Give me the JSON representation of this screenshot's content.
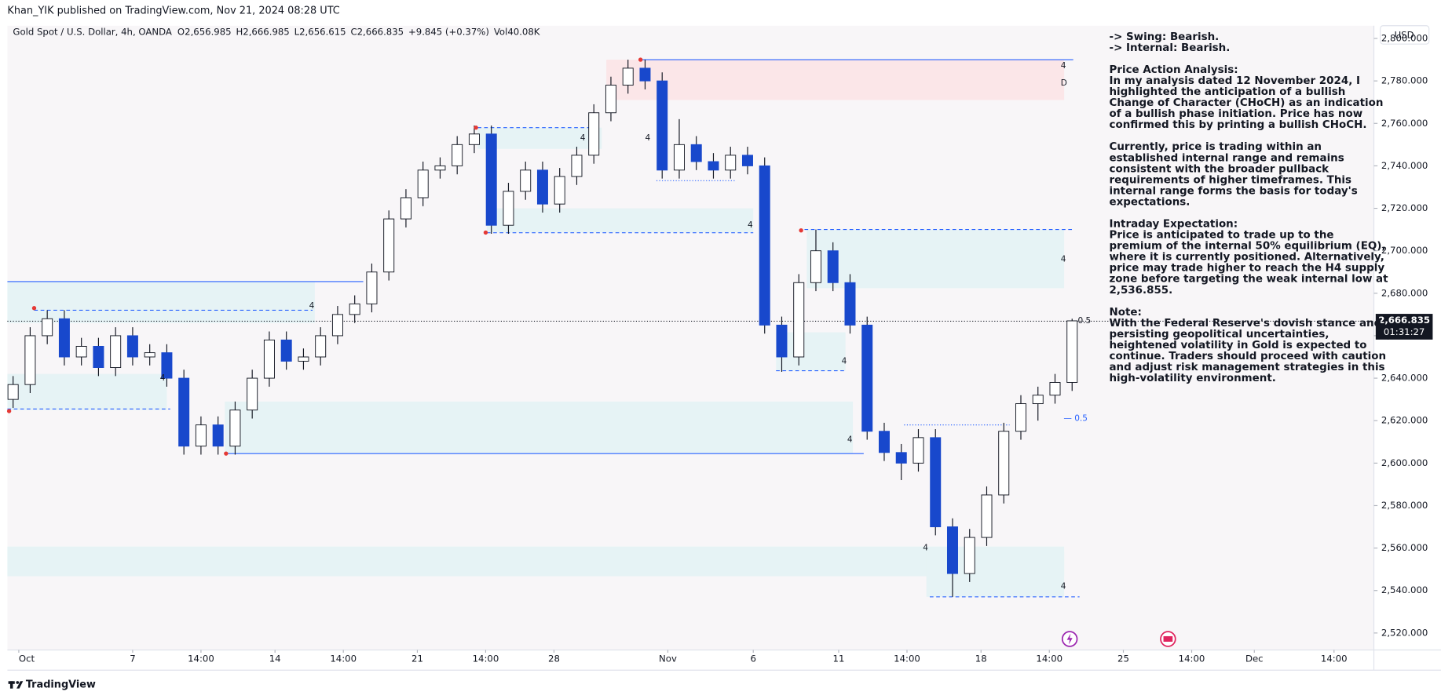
{
  "chart_data": {
    "type": "candlestick",
    "published": "Khan_YIK published on TradingView.com, Nov 21, 2024 08:28 UTC",
    "symbol": "Gold Spot / U.S. Dollar, 4h, OANDA",
    "ohlc_legend": [
      "O2,656.985",
      "H2,666.985",
      "L2,656.615",
      "C2,666.835",
      "+9.845 (+0.37%)",
      "Vol40.08K"
    ],
    "currency": "USD",
    "brand": "TradingView",
    "xlim": [
      0,
      240
    ],
    "ylim": [
      2512,
      2806
    ],
    "yticks": [
      {
        "value": 2520,
        "label": "2,520.000"
      },
      {
        "value": 2540,
        "label": "2,540.000"
      },
      {
        "value": 2560,
        "label": "2,560.000"
      },
      {
        "value": 2580,
        "label": "2,580.000"
      },
      {
        "value": 2600,
        "label": "2,600.000"
      },
      {
        "value": 2620,
        "label": "2,620.000"
      },
      {
        "value": 2640,
        "label": "2,640.000"
      },
      {
        "value": 2660,
        "label": "2,660.000"
      },
      {
        "value": 2680,
        "label": "2,680.000"
      },
      {
        "value": 2700,
        "label": "2,700.000"
      },
      {
        "value": 2720,
        "label": "2,720.000"
      },
      {
        "value": 2740,
        "label": "2,740.000"
      },
      {
        "value": 2760,
        "label": "2,760.000"
      },
      {
        "value": 2780,
        "label": "2,780.000"
      },
      {
        "value": 2800,
        "label": "2,800.000"
      }
    ],
    "xticks": [
      {
        "value": 2,
        "label": "Oct"
      },
      {
        "value": 22,
        "label": "7"
      },
      {
        "value": 34,
        "label": "14:00"
      },
      {
        "value": 47,
        "label": "14"
      },
      {
        "value": 59,
        "label": "14:00"
      },
      {
        "value": 72,
        "label": "21"
      },
      {
        "value": 84,
        "label": "14:00"
      },
      {
        "value": 96,
        "label": "28"
      },
      {
        "value": 116,
        "label": "Nov"
      },
      {
        "value": 131,
        "label": "6"
      },
      {
        "value": 146,
        "label": "11"
      },
      {
        "value": 158,
        "label": "14:00"
      },
      {
        "value": 171,
        "label": "18"
      },
      {
        "value": 183,
        "label": "14:00"
      },
      {
        "value": 196,
        "label": "25"
      },
      {
        "value": 208,
        "label": "14:00"
      },
      {
        "value": 219,
        "label": "Dec"
      },
      {
        "value": 233,
        "label": "14:00"
      }
    ],
    "bull_color": "#ffffff",
    "bear_color": "#1848cc",
    "x": [
      1,
      4,
      7,
      10,
      13,
      16,
      19,
      22,
      25,
      28,
      31,
      34,
      37,
      40,
      43,
      46,
      49,
      52,
      55,
      58,
      61,
      64,
      67,
      70,
      73,
      76,
      79,
      82,
      85,
      88,
      91,
      94,
      97,
      100,
      103,
      106,
      109,
      112,
      115,
      118,
      121,
      124,
      127,
      130,
      133,
      136,
      139,
      142,
      145,
      148,
      151,
      154,
      157,
      160,
      163,
      166,
      169,
      172,
      175,
      178,
      181,
      184,
      187
    ],
    "candles": [
      [
        2630,
        2641,
        2626,
        2637
      ],
      [
        2637,
        2664,
        2633,
        2660
      ],
      [
        2660,
        2672,
        2656,
        2668
      ],
      [
        2668,
        2672,
        2646,
        2650
      ],
      [
        2650,
        2659,
        2646,
        2655
      ],
      [
        2655,
        2659,
        2641,
        2645
      ],
      [
        2645,
        2664,
        2641,
        2660
      ],
      [
        2660,
        2664,
        2646,
        2650
      ],
      [
        2650,
        2656,
        2646,
        2652
      ],
      [
        2652,
        2656,
        2636,
        2640
      ],
      [
        2640,
        2644,
        2604,
        2608
      ],
      [
        2608,
        2622,
        2604,
        2618
      ],
      [
        2618,
        2622,
        2604,
        2608
      ],
      [
        2608,
        2629,
        2604,
        2625
      ],
      [
        2625,
        2644,
        2621,
        2640
      ],
      [
        2640,
        2662,
        2636,
        2658
      ],
      [
        2658,
        2662,
        2644,
        2648
      ],
      [
        2648,
        2654,
        2644,
        2650
      ],
      [
        2650,
        2664,
        2646,
        2660
      ],
      [
        2660,
        2674,
        2656,
        2670
      ],
      [
        2670,
        2679,
        2666,
        2675
      ],
      [
        2675,
        2694,
        2671,
        2690
      ],
      [
        2690,
        2719,
        2686,
        2715
      ],
      [
        2715,
        2729,
        2711,
        2725
      ],
      [
        2725,
        2742,
        2721,
        2738
      ],
      [
        2738,
        2744,
        2734,
        2740
      ],
      [
        2740,
        2754,
        2736,
        2750
      ],
      [
        2750,
        2759,
        2746,
        2755
      ],
      [
        2755,
        2759,
        2708,
        2712
      ],
      [
        2712,
        2732,
        2708,
        2728
      ],
      [
        2728,
        2742,
        2724,
        2738
      ],
      [
        2738,
        2742,
        2718,
        2722
      ],
      [
        2722,
        2739,
        2718,
        2735
      ],
      [
        2735,
        2749,
        2731,
        2745
      ],
      [
        2745,
        2769,
        2741,
        2765
      ],
      [
        2765,
        2782,
        2761,
        2778
      ],
      [
        2778,
        2790,
        2774,
        2786
      ],
      [
        2786,
        2790,
        2776,
        2780
      ],
      [
        2780,
        2784,
        2734,
        2738
      ],
      [
        2738,
        2762,
        2734,
        2750
      ],
      [
        2750,
        2754,
        2738,
        2742
      ],
      [
        2742,
        2746,
        2734,
        2738
      ],
      [
        2738,
        2749,
        2734,
        2745
      ],
      [
        2745,
        2749,
        2736,
        2740
      ],
      [
        2740,
        2744,
        2661,
        2665
      ],
      [
        2665,
        2669,
        2643,
        2650
      ],
      [
        2650,
        2689,
        2646,
        2685
      ],
      [
        2685,
        2710,
        2681,
        2700
      ],
      [
        2700,
        2704,
        2681,
        2685
      ],
      [
        2685,
        2689,
        2661,
        2665
      ],
      [
        2665,
        2669,
        2611,
        2615
      ],
      [
        2615,
        2619,
        2601,
        2605
      ],
      [
        2605,
        2609,
        2592,
        2600
      ],
      [
        2600,
        2616,
        2596,
        2612
      ],
      [
        2612,
        2616,
        2566,
        2570
      ],
      [
        2570,
        2574,
        2537,
        2548
      ],
      [
        2548,
        2569,
        2544,
        2565
      ],
      [
        2565,
        2589,
        2561,
        2585
      ],
      [
        2585,
        2619,
        2581,
        2615
      ],
      [
        2615,
        2632,
        2611,
        2628
      ],
      [
        2628,
        2636,
        2620,
        2632
      ],
      [
        2632,
        2642,
        2628,
        2638
      ],
      [
        2638,
        2668,
        2634,
        2667
      ]
    ],
    "zones": [
      {
        "x": [
          105.2,
          185.6
        ],
        "y": [
          2771,
          2790
        ],
        "color": "#fbe6e8"
      },
      {
        "x": [
          0,
          54
        ],
        "y": [
          2666,
          2685.5
        ],
        "color": "#e6f3f5"
      },
      {
        "x": [
          0,
          28
        ],
        "y": [
          2625,
          2642
        ],
        "color": "#e6f3f5"
      },
      {
        "x": [
          38.2,
          148.5
        ],
        "y": [
          2604.6,
          2629
        ],
        "color": "#e6f3f5"
      },
      {
        "x": [
          82.6,
          104.4
        ],
        "y": [
          2748,
          2758
        ],
        "color": "#e6f3f5"
      },
      {
        "x": [
          84.2,
          131
        ],
        "y": [
          2708.6,
          2720
        ],
        "color": "#e6f3f5"
      },
      {
        "x": [
          140.4,
          185.6
        ],
        "y": [
          2682.4,
          2710
        ],
        "color": "#e6f3f5"
      },
      {
        "x": [
          135,
          147.2
        ],
        "y": [
          2643.5,
          2661.6
        ],
        "color": "#e6f3f5"
      },
      {
        "x": [
          0,
          185.6
        ],
        "y": [
          2546.7,
          2560.7
        ],
        "color": "#e6f3f5"
      },
      {
        "x": [
          161.4,
          185.6
        ],
        "y": [
          2537,
          2558.5
        ],
        "color": "#e6f3f5"
      }
    ],
    "levels": [
      {
        "value": 2790,
        "x": [
          111.2,
          187.2
        ],
        "style": "solid"
      },
      {
        "value": 2685.5,
        "x": [
          0,
          62.5
        ],
        "style": "solid"
      },
      {
        "value": 2672,
        "x": [
          4.7,
          53.6
        ],
        "style": "dashed"
      },
      {
        "value": 2625.5,
        "x": [
          0,
          28.6
        ],
        "style": "dashed"
      },
      {
        "value": 2604.5,
        "x": [
          38.2,
          150.4
        ],
        "style": "solid"
      },
      {
        "value": 2758,
        "x": [
          82.6,
          102.8
        ],
        "style": "dashed"
      },
      {
        "value": 2708.5,
        "x": [
          84.2,
          131
        ],
        "style": "dashed"
      },
      {
        "value": 2710,
        "x": [
          140,
          187.2
        ],
        "style": "dashed"
      },
      {
        "value": 2733,
        "x": [
          114,
          128
        ],
        "style": "dotted"
      },
      {
        "value": 2643.5,
        "x": [
          135,
          147.2
        ],
        "style": "dashed"
      },
      {
        "value": 2618,
        "x": [
          157.5,
          176
        ],
        "style": "dotted"
      },
      {
        "value": 2537,
        "x": [
          162,
          188.3
        ],
        "style": "dashed"
      }
    ],
    "swing_points": [
      {
        "x": 4.7,
        "y": 2673
      },
      {
        "x": 0.3,
        "y": 2624.5
      },
      {
        "x": 38.4,
        "y": 2604.5
      },
      {
        "x": 82.3,
        "y": 2758
      },
      {
        "x": 84,
        "y": 2708.6
      },
      {
        "x": 111.2,
        "y": 2790
      },
      {
        "x": 139.4,
        "y": 2709.6
      }
    ],
    "annotations": [
      {
        "text": "4",
        "x": 185,
        "y": 2787,
        "color": "#131722"
      },
      {
        "text": "D",
        "x": 185,
        "y": 2779,
        "color": "#131722"
      },
      {
        "text": "4",
        "x": 53,
        "y": 2674,
        "color": "#131722"
      },
      {
        "text": "4",
        "x": 26.8,
        "y": 2640,
        "color": "#131722"
      },
      {
        "text": "4",
        "x": 100.6,
        "y": 2753,
        "color": "#131722"
      },
      {
        "text": "4",
        "x": 112,
        "y": 2753,
        "color": "#131722"
      },
      {
        "text": "4",
        "x": 130,
        "y": 2712,
        "color": "#131722"
      },
      {
        "text": "4",
        "x": 185,
        "y": 2696,
        "color": "#131722"
      },
      {
        "text": "4",
        "x": 146.5,
        "y": 2648,
        "color": "#131722"
      },
      {
        "text": "4",
        "x": 147.5,
        "y": 2611,
        "color": "#131722"
      },
      {
        "text": "4",
        "x": 160.8,
        "y": 2560,
        "color": "#131722"
      },
      {
        "text": "4",
        "x": 185,
        "y": 2542,
        "color": "#131722"
      },
      {
        "text": "0.5",
        "x": 188,
        "y": 2667,
        "color": "#131722"
      },
      {
        "text": "— 0.5",
        "x": 185.5,
        "y": 2621,
        "color": "#2962ff"
      }
    ],
    "last_price": {
      "value": 2666.835,
      "label": "2,666.835",
      "timer": "01:31:27"
    },
    "notes": [
      [
        "-> Swing:  Bearish.",
        "-> Internal:  Bearish."
      ],
      [
        "Price Action Analysis:",
        "In my analysis dated 12 November 2024, I",
        "highlighted the anticipation of a bullish",
        "Change of Character (CHoCH) as an indication",
        "of a bullish phase initiation. Price has now",
        "confirmed this by printing a bullish CHoCH."
      ],
      [
        "Currently, price is trading within an",
        "established internal range and remains",
        "consistent with the broader pullback",
        "requirements of higher timeframes. This",
        "internal range forms the basis for today's",
        "expectations."
      ],
      [
        "Intraday Expectation:",
        "Price is anticipated to trade up to the",
        "premium of the internal 50% equilibrium (EQ),",
        "where it is currently positioned. Alternatively,",
        "price may trade higher to reach the H4 supply",
        "zone before targeting the weak internal low at",
        "2,536.855."
      ],
      [
        "Note:",
        "With the Federal Reserve's dovish stance and",
        "persisting geopolitical uncertainties,",
        "heightened volatility in Gold is expected to",
        "continue. Traders should proceed with caution",
        "and adjust risk management strategies in this",
        "high-volatility environment."
      ]
    ]
  }
}
